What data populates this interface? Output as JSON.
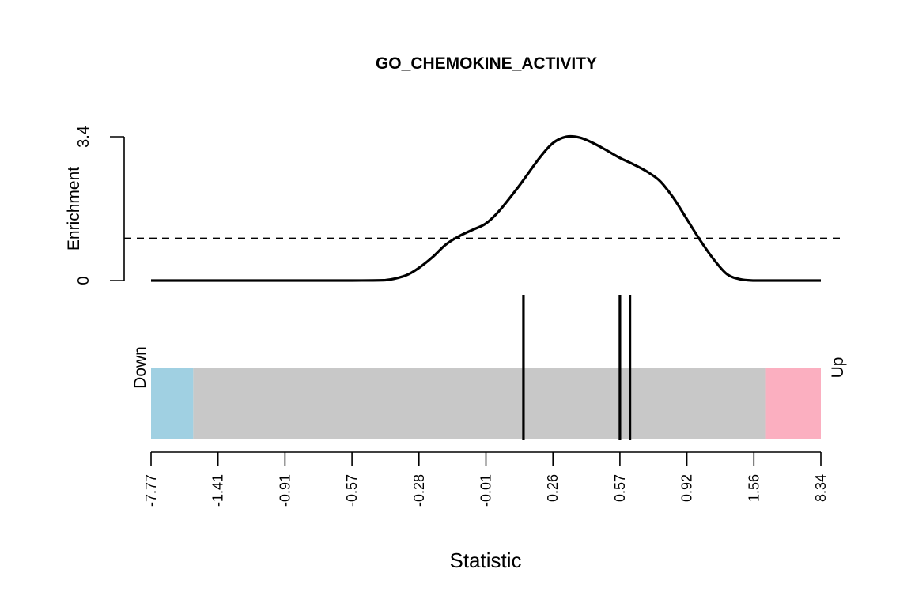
{
  "chart_data": {
    "type": "barcode-enrichment",
    "title": "GO_CHEMOKINE_ACTIVITY",
    "xlabel": "Statistic",
    "ylabel": "Enrichment",
    "y_ticks": [
      "0",
      "3.4"
    ],
    "ylim": [
      0,
      3.4
    ],
    "x_ticks": [
      "-7.77",
      "-1.41",
      "-0.91",
      "-0.57",
      "-0.28",
      "-0.01",
      "0.26",
      "0.57",
      "0.92",
      "1.56",
      "8.34"
    ],
    "reference_line": 1.0,
    "enrichment_curve": {
      "x": [
        0,
        0.1,
        0.2,
        0.3,
        0.35,
        0.38,
        0.4,
        0.42,
        0.44,
        0.46,
        0.48,
        0.5,
        0.52,
        0.55,
        0.58,
        0.6,
        0.62,
        0.64,
        0.66,
        0.68,
        0.7,
        0.72,
        0.74,
        0.76,
        0.78,
        0.8,
        0.82,
        0.84,
        0.86,
        0.88,
        0.9,
        0.92,
        0.94,
        0.96,
        1.0
      ],
      "y": [
        0,
        0,
        0,
        0,
        0.01,
        0.12,
        0.3,
        0.55,
        0.85,
        1.05,
        1.2,
        1.35,
        1.65,
        2.25,
        2.9,
        3.25,
        3.4,
        3.38,
        3.25,
        3.08,
        2.9,
        2.75,
        2.58,
        2.35,
        1.95,
        1.45,
        0.95,
        0.5,
        0.15,
        0.03,
        0.0,
        0,
        0,
        0,
        0
      ]
    },
    "barcode_positions": [
      0.556,
      0.7,
      0.715
    ],
    "bar_regions": [
      {
        "from": 0,
        "to": 0.063,
        "color": "#A0D0E2"
      },
      {
        "from": 0.063,
        "to": 0.918,
        "color": "#C8C8C8"
      },
      {
        "from": 0.918,
        "to": 1,
        "color": "#FBAFC0"
      }
    ],
    "down_label": "Down",
    "up_label": "Up"
  }
}
